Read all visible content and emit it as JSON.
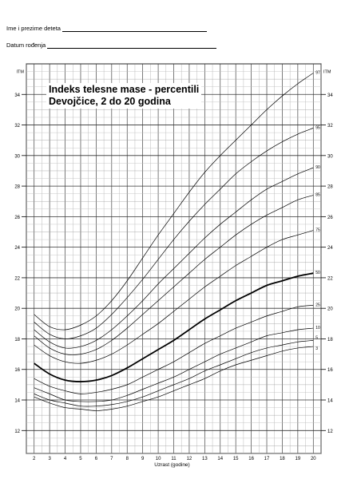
{
  "form": {
    "name_label": "Ime i prezime deteta",
    "dob_label": "Datum rođenja"
  },
  "chart_data": {
    "type": "line",
    "title": "Indeks telesne mase - percentili",
    "subtitle": "Devojčice, 2 do 20 godina",
    "xlabel": "Uzrast (godine)",
    "ylabel": "ITM",
    "xlim": [
      1.5,
      20.5
    ],
    "ylim": [
      10.5,
      36
    ],
    "x_ticks": [
      "2",
      "3",
      "4",
      "5",
      "6",
      "7",
      "8",
      "9",
      "10",
      "11",
      "12",
      "13",
      "14",
      "15",
      "16",
      "17",
      "18",
      "19",
      "20"
    ],
    "y_ticks": [
      "12",
      "14",
      "16",
      "18",
      "20",
      "22",
      "24",
      "26",
      "28",
      "30",
      "32",
      "34"
    ],
    "grid": true,
    "x": [
      2,
      3,
      4,
      5,
      6,
      7,
      8,
      9,
      10,
      11,
      12,
      13,
      14,
      15,
      16,
      17,
      18,
      19,
      20
    ],
    "series": [
      {
        "name": "97",
        "values": [
          19.6,
          18.8,
          18.6,
          18.9,
          19.5,
          20.5,
          21.8,
          23.3,
          24.8,
          26.2,
          27.6,
          28.9,
          30.0,
          31.0,
          32.0,
          33.0,
          33.9,
          34.7,
          35.4
        ]
      },
      {
        "name": "95",
        "values": [
          19.1,
          18.3,
          18.0,
          18.2,
          18.7,
          19.6,
          20.7,
          21.9,
          23.2,
          24.5,
          25.7,
          26.8,
          27.8,
          28.8,
          29.6,
          30.3,
          30.9,
          31.4,
          31.8
        ]
      },
      {
        "name": "90",
        "values": [
          18.6,
          17.8,
          17.4,
          17.5,
          17.9,
          18.6,
          19.5,
          20.5,
          21.6,
          22.6,
          23.6,
          24.6,
          25.5,
          26.3,
          27.1,
          27.8,
          28.3,
          28.8,
          29.2
        ]
      },
      {
        "name": "85",
        "values": [
          18.2,
          17.4,
          17.0,
          17.0,
          17.3,
          17.9,
          18.7,
          19.6,
          20.5,
          21.4,
          22.3,
          23.2,
          24.0,
          24.8,
          25.5,
          26.1,
          26.6,
          27.1,
          27.4
        ]
      },
      {
        "name": "75",
        "values": [
          17.6,
          16.9,
          16.5,
          16.4,
          16.6,
          17.0,
          17.6,
          18.3,
          19.0,
          19.8,
          20.6,
          21.4,
          22.1,
          22.8,
          23.4,
          24.0,
          24.5,
          24.8,
          25.1
        ]
      },
      {
        "name": "50",
        "values": [
          16.4,
          15.7,
          15.3,
          15.2,
          15.3,
          15.6,
          16.1,
          16.7,
          17.3,
          17.9,
          18.6,
          19.3,
          19.9,
          20.5,
          21.0,
          21.5,
          21.8,
          22.1,
          22.3
        ]
      },
      {
        "name": "25",
        "values": [
          15.4,
          14.9,
          14.6,
          14.4,
          14.5,
          14.7,
          15.0,
          15.5,
          16.0,
          16.5,
          17.1,
          17.7,
          18.2,
          18.7,
          19.1,
          19.5,
          19.8,
          20.1,
          20.2
        ]
      },
      {
        "name": "10",
        "values": [
          14.8,
          14.4,
          14.0,
          13.9,
          13.9,
          14.0,
          14.3,
          14.7,
          15.1,
          15.5,
          16.0,
          16.5,
          17.0,
          17.4,
          17.8,
          18.2,
          18.4,
          18.6,
          18.7
        ]
      },
      {
        "name": "5",
        "values": [
          14.4,
          14.0,
          13.8,
          13.6,
          13.6,
          13.7,
          13.9,
          14.2,
          14.6,
          15.0,
          15.4,
          15.9,
          16.3,
          16.7,
          17.1,
          17.4,
          17.6,
          17.8,
          17.9
        ]
      },
      {
        "name": "3",
        "values": [
          14.2,
          13.8,
          13.5,
          13.4,
          13.3,
          13.4,
          13.6,
          13.9,
          14.2,
          14.6,
          15.0,
          15.4,
          15.9,
          16.3,
          16.6,
          16.9,
          17.2,
          17.4,
          17.5
        ]
      }
    ]
  }
}
